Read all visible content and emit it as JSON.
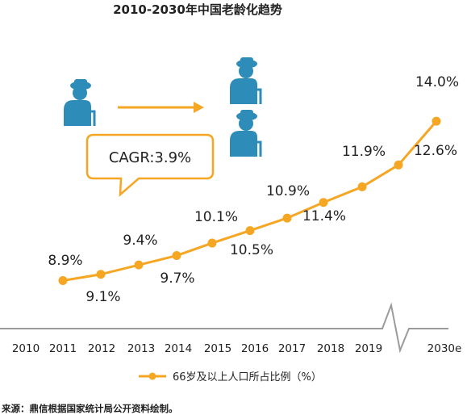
{
  "chart_data": {
    "type": "line",
    "title": "2010-2030年中国老龄化趋势",
    "categories": [
      "2010",
      "2011",
      "2012",
      "2013",
      "2014",
      "2015",
      "2016",
      "2017",
      "2018",
      "2019",
      "2030e"
    ],
    "series": [
      {
        "name": "66岁及以上人口所占比例（%）",
        "values": [
          8.9,
          9.1,
          9.4,
          9.7,
          10.1,
          10.5,
          10.9,
          11.4,
          11.9,
          12.6,
          14.0
        ],
        "labels": [
          "8.9%",
          "9.1%",
          "9.4%",
          "9.7%",
          "10.1%",
          "10.5%",
          "10.9%",
          "11.4%",
          "11.9%",
          "12.6%",
          "14.0%"
        ]
      }
    ],
    "xlabel": "",
    "ylabel": "",
    "ylim": [
      8,
      14.5
    ],
    "axis_break": "between 2019 and 2030e",
    "grid": false,
    "legend_position": "bottom",
    "annotation": "CAGR:3.9%",
    "colors": {
      "line": "#F5A623",
      "axis": "#9B9B9B",
      "icon": "#2E8CB8",
      "callout_border": "#F5A623"
    },
    "icons": [
      "elderly-person-icon",
      "arrow-right-icon",
      "elderly-person-icon",
      "elderly-person-icon"
    ]
  },
  "source": "来源：鼎信根据国家统计局公开资料绘制。"
}
